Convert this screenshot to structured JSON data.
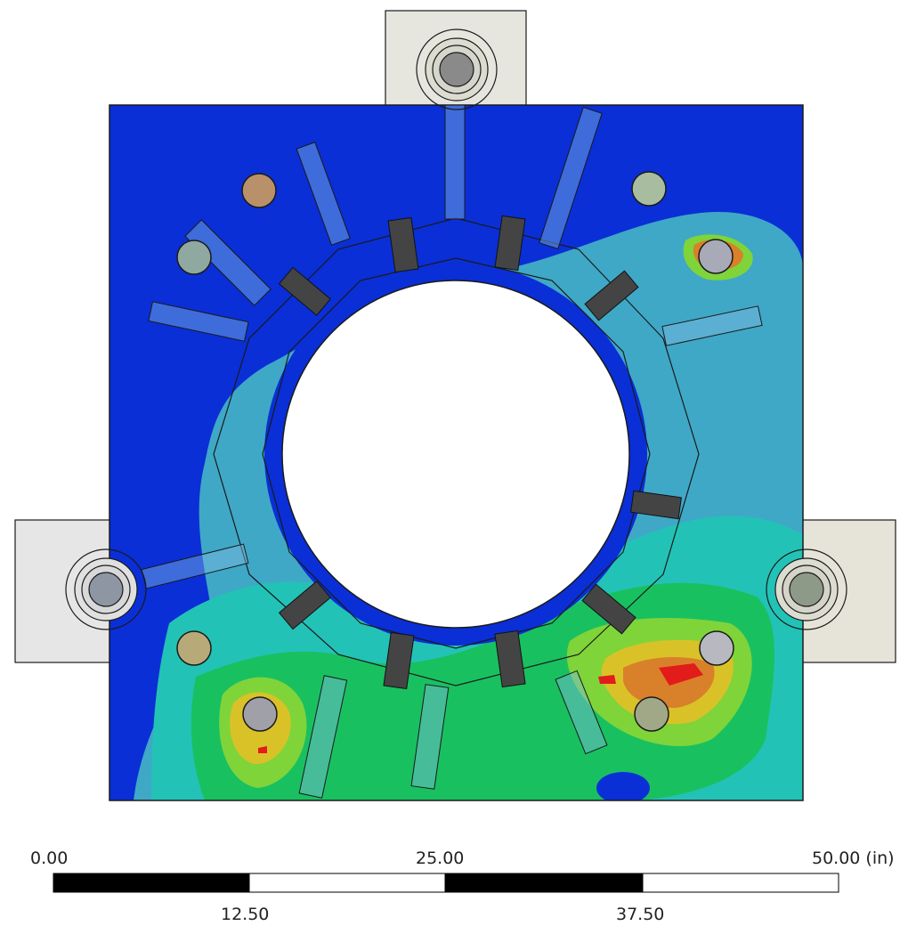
{
  "viewport": {
    "description_free": true,
    "colors": {
      "background": "#ffffff",
      "plate_base": "#0a2fd6",
      "contour_cyan": "#3fa8c6",
      "contour_teal": "#23c2b7",
      "contour_green": "#19c060",
      "contour_lime": "#7fd43a",
      "contour_yellow": "#d9c227",
      "contour_orange": "#d9802a",
      "contour_red": "#e21b1b",
      "support_block": "#e6e6df",
      "outline": "#1a1a1a"
    }
  },
  "scale_bar": {
    "label_0": "0.00",
    "label_25": "25.00",
    "label_50": "50.00 (in)",
    "label_12_5": "12.50",
    "label_37_5": "37.50",
    "segment_colors": [
      "#000000",
      "#ffffff",
      "#000000",
      "#ffffff"
    ]
  }
}
